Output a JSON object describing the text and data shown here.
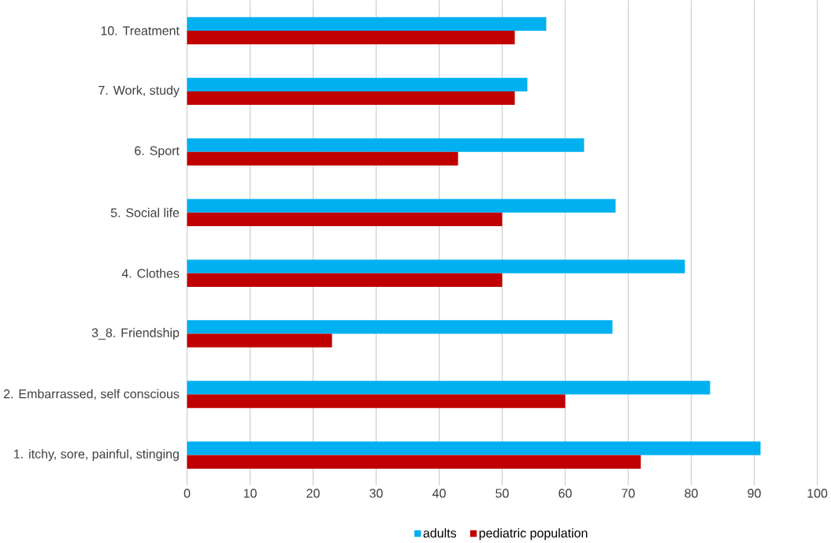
{
  "chart_data": {
    "type": "bar",
    "orientation": "horizontal",
    "categories": [
      "10. Treatment",
      "7. Work, study",
      "6. Sport",
      "5. Social life",
      "4. Clothes",
      "3_8. Friendship",
      "2. Embarrassed, self conscious",
      "1. itchy, sore, painful, stinging"
    ],
    "series": [
      {
        "name": "adults",
        "color": "#00b0f0",
        "values": [
          57,
          54,
          63,
          68,
          79,
          67.5,
          83,
          91
        ]
      },
      {
        "name": "pediatric population",
        "color": "#c00000",
        "values": [
          52,
          52,
          43,
          50,
          50,
          23,
          60,
          72
        ]
      }
    ],
    "xlim": [
      0,
      100
    ],
    "xticks": [
      0,
      10,
      20,
      30,
      40,
      50,
      60,
      70,
      80,
      90,
      100
    ],
    "grid": "x",
    "legend": "bottom"
  }
}
